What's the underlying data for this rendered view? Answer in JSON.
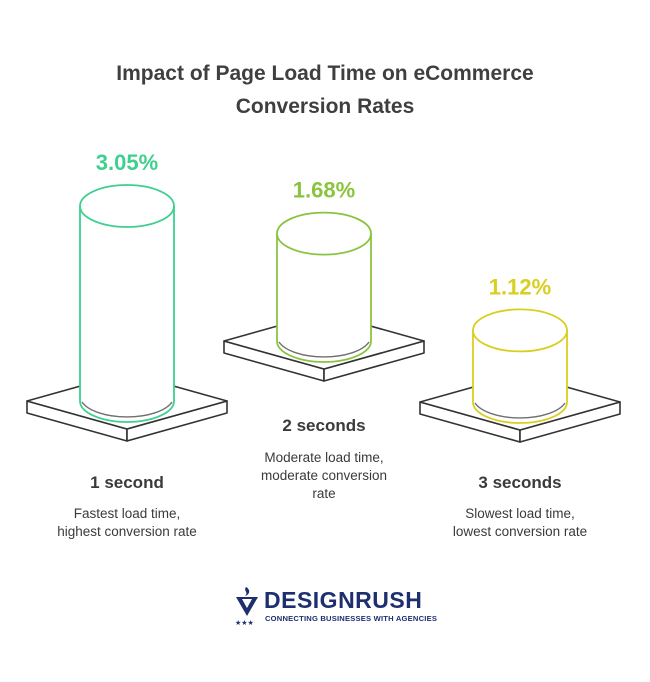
{
  "title_line1": "Impact of Page Load Time on eCommerce",
  "title_line2": "Conversion Rates",
  "chart_data": {
    "type": "bar",
    "title": "Impact of Page Load Time on eCommerce Conversion Rates",
    "categories": [
      "1 second",
      "2 seconds",
      "3 seconds"
    ],
    "values": [
      3.05,
      1.68,
      1.12
    ],
    "value_labels": [
      "3.05%",
      "1.68%",
      "1.12%"
    ],
    "descriptions": [
      [
        "Fastest load time,",
        "highest conversion rate"
      ],
      [
        "Moderate load time,",
        "moderate conversion",
        "rate"
      ],
      [
        "Slowest load time,",
        "lowest conversion rate"
      ]
    ],
    "colors": [
      "#3fcf8e",
      "#8ac43f",
      "#d9cf1f"
    ],
    "unit": "%"
  },
  "logo": {
    "name": "DESIGNRUSH",
    "tagline": "CONNECTING BUSINESSES WITH AGENCIES",
    "icon": "designrush-torch-icon",
    "color": "#1d2f6e"
  }
}
